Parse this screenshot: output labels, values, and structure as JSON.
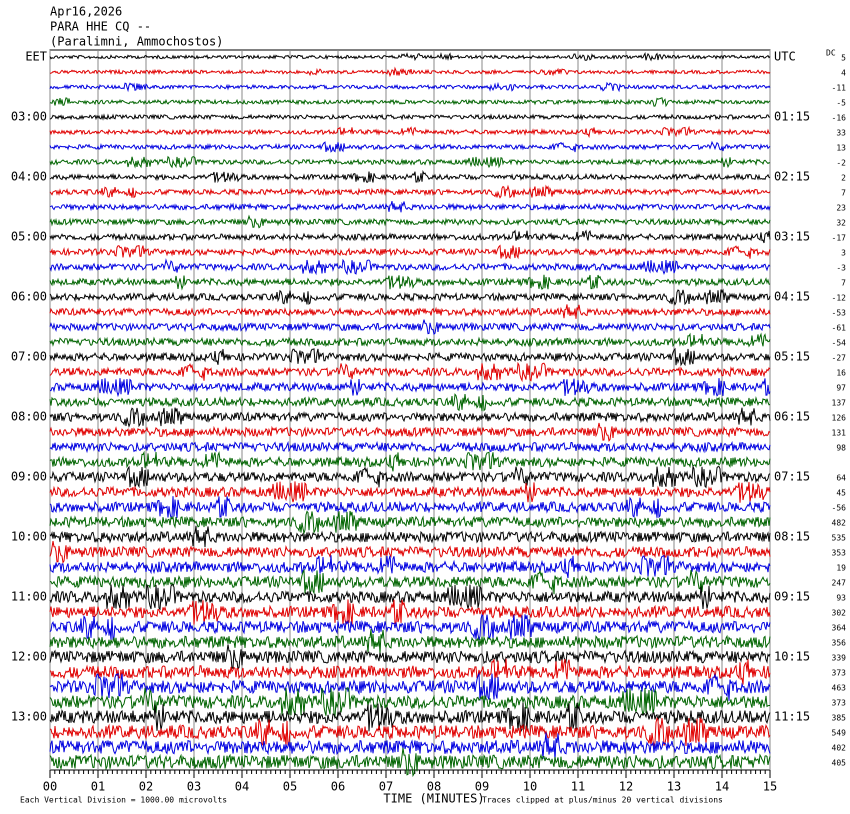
{
  "chart_data": {
    "type": "helicorder",
    "title": "Apr16,2026",
    "subtitle": "PARA HHE CQ --",
    "location": "(Paralimni, Ammochostos)",
    "left_labels": [
      "EET",
      "03:00",
      "04:00",
      "05:00",
      "06:00",
      "07:00",
      "08:00",
      "09:00",
      "10:00",
      "11:00",
      "12:00",
      "13:00"
    ],
    "right_labels": [
      "UTC",
      "01:15",
      "02:15",
      "03:15",
      "04:15",
      "05:15",
      "06:15",
      "07:15",
      "08:15",
      "09:15",
      "10:15",
      "11:15"
    ],
    "dc_label": "DC",
    "dc_values": [
      5,
      4,
      -11,
      -5,
      -16,
      33,
      13,
      -2,
      2,
      7,
      23,
      32,
      -17,
      3,
      -3,
      7,
      -12,
      -53,
      -61,
      -54,
      -27,
      16,
      97,
      137,
      126,
      131,
      98,
      null,
      64,
      45,
      -56,
      482,
      535,
      353,
      19,
      247,
      93,
      302,
      364,
      356,
      339,
      373,
      463,
      373,
      385,
      549,
      402,
      405
    ],
    "trace_colors": [
      "#000000",
      "#e00000",
      "#0000e0",
      "#006400"
    ],
    "xlabel": "TIME (MINUTES)",
    "xlim": [
      0,
      15
    ],
    "xticks": [
      {
        "value": 0,
        "label": "00"
      },
      {
        "value": 1,
        "label": "01"
      },
      {
        "value": 2,
        "label": "02"
      },
      {
        "value": 3,
        "label": "03"
      },
      {
        "value": 4,
        "label": "04"
      },
      {
        "value": 5,
        "label": "05"
      },
      {
        "value": 6,
        "label": "06"
      },
      {
        "value": 7,
        "label": "07"
      },
      {
        "value": 8,
        "label": "08"
      },
      {
        "value": 9,
        "label": "09"
      },
      {
        "value": 10,
        "label": "10"
      },
      {
        "value": 11,
        "label": "11"
      },
      {
        "value": 12,
        "label": "12"
      },
      {
        "value": 13,
        "label": "13"
      },
      {
        "value": 14,
        "label": "14"
      },
      {
        "value": 15,
        "label": "15"
      }
    ],
    "scale_note": "Each Vertical Division = 1000.00 microvolts",
    "clip_note": "Traces clipped at plus/minus 20 vertical divisions",
    "grid": true
  }
}
